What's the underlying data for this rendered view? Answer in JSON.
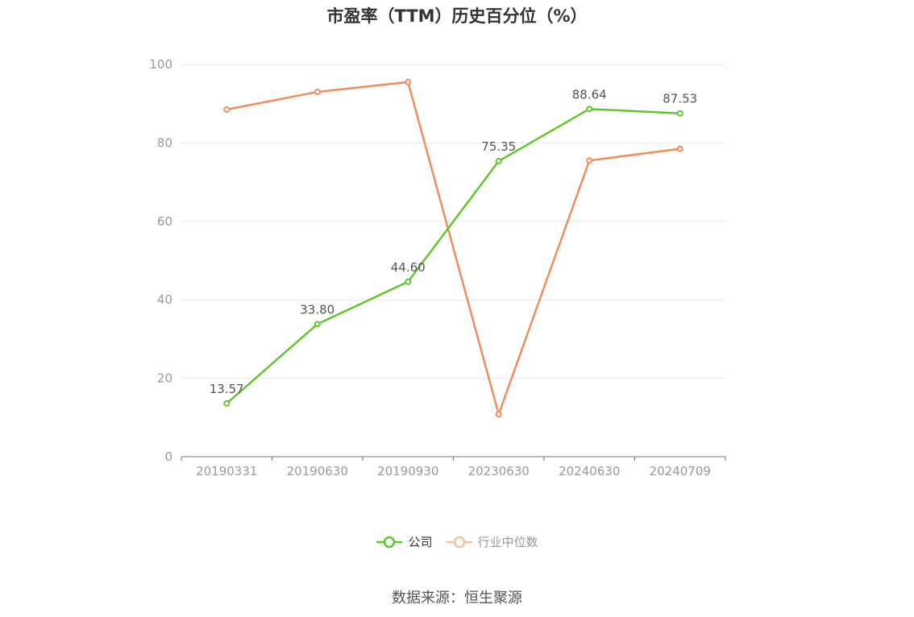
{
  "chart_data": {
    "type": "line",
    "title": "市盈率（TTM）历史百分位（%）",
    "categories": [
      "20190331",
      "20190630",
      "20190930",
      "20230630",
      "20240630",
      "20240709"
    ],
    "series": [
      {
        "name": "公司",
        "values": [
          13.57,
          33.8,
          44.6,
          75.35,
          88.64,
          87.53
        ],
        "color": "#5ec72c",
        "labels_shown": true
      },
      {
        "name": "行业中位数",
        "values": [
          88.5,
          93.0,
          95.5,
          10.8,
          75.5,
          78.5
        ],
        "color": "#f28c5a",
        "labels_shown": false
      }
    ],
    "y_ticks": [
      "0",
      "20",
      "40",
      "60",
      "80",
      "100"
    ],
    "ylim": [
      0,
      100
    ],
    "grid": true,
    "legend_position": "bottom"
  },
  "legend": {
    "company": "公司",
    "industry": "行业中位数"
  },
  "source": "数据来源：恒生聚源"
}
